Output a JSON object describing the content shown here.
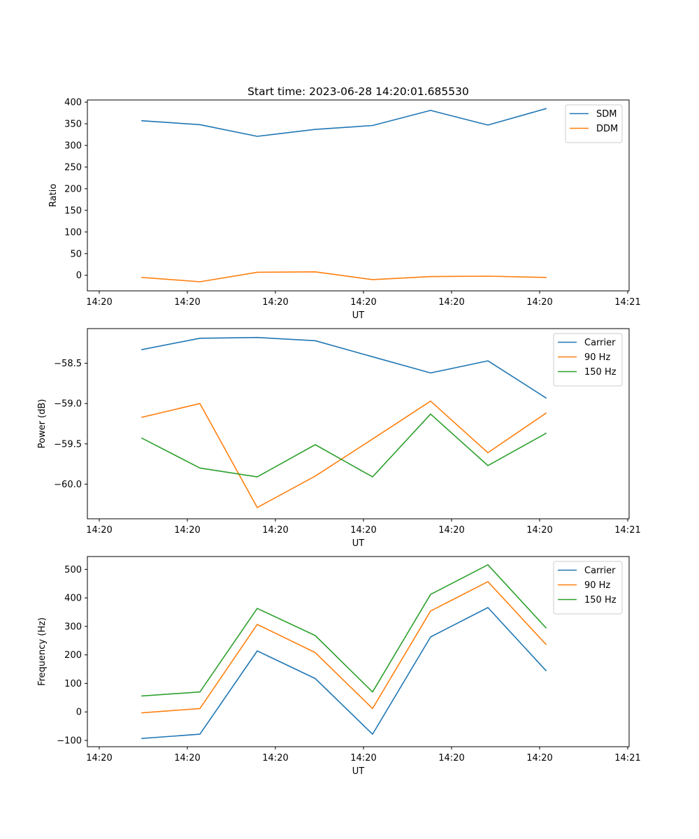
{
  "figure": {
    "title": "Start time: 2023-06-28 14:20:01.685530"
  },
  "chart_data": [
    {
      "type": "line",
      "title": "Start time: 2023-06-28 14:20:01.685530",
      "xlabel": "UT",
      "ylabel": "Ratio",
      "x_tick_labels": [
        "14:20",
        "14:20",
        "14:20",
        "14:20",
        "14:20",
        "14:20",
        "14:21"
      ],
      "y_ticks": [
        0,
        50,
        100,
        150,
        200,
        250,
        300,
        350,
        400
      ],
      "ylim": [
        -36,
        405
      ],
      "legend_position": "top-right",
      "grid": false,
      "series": [
        {
          "name": "SDM",
          "color": "#1f77b4",
          "values": [
            357,
            348,
            321,
            337,
            346,
            381,
            347,
            385
          ]
        },
        {
          "name": "DDM",
          "color": "#ff7f0e",
          "values": [
            -5,
            -15,
            7,
            8,
            -10,
            -3,
            -2,
            -5
          ]
        }
      ]
    },
    {
      "type": "line",
      "xlabel": "UT",
      "ylabel": "Power (dB)",
      "x_tick_labels": [
        "14:20",
        "14:20",
        "14:20",
        "14:20",
        "14:20",
        "14:20",
        "14:21"
      ],
      "y_ticks": [
        -60.0,
        -59.5,
        -59.0,
        -58.5
      ],
      "y_tick_labels": [
        "−60.0",
        "−59.5",
        "−59.0",
        "−58.5"
      ],
      "ylim": [
        -60.43,
        -58.07
      ],
      "legend_position": "top-right",
      "grid": false,
      "series": [
        {
          "name": "Carrier",
          "color": "#1f77b4",
          "values": [
            -58.33,
            -58.19,
            -58.18,
            -58.22,
            -58.42,
            -58.62,
            -58.47,
            -58.93
          ]
        },
        {
          "name": "90 Hz",
          "color": "#ff7f0e",
          "values": [
            -59.17,
            -59.0,
            -60.29,
            -59.9,
            -59.44,
            -58.97,
            -59.61,
            -59.12
          ]
        },
        {
          "name": "150 Hz",
          "color": "#2ca02c",
          "values": [
            -59.43,
            -59.8,
            -59.91,
            -59.51,
            -59.91,
            -59.13,
            -59.77,
            -59.37
          ]
        }
      ]
    },
    {
      "type": "line",
      "xlabel": "UT",
      "ylabel": "Frequency (Hz)",
      "x_tick_labels": [
        "14:20",
        "14:20",
        "14:20",
        "14:20",
        "14:20",
        "14:20",
        "14:21"
      ],
      "y_ticks": [
        -100,
        0,
        100,
        200,
        300,
        400,
        500
      ],
      "y_tick_labels": [
        "−100",
        "0",
        "100",
        "200",
        "300",
        "400",
        "500"
      ],
      "ylim": [
        -122,
        545
      ],
      "legend_position": "top-right",
      "grid": false,
      "series": [
        {
          "name": "Carrier",
          "color": "#1f77b4",
          "values": [
            -93,
            -78,
            214,
            117,
            -78,
            263,
            366,
            145
          ]
        },
        {
          "name": "90 Hz",
          "color": "#ff7f0e",
          "values": [
            -3,
            12,
            307,
            208,
            12,
            354,
            457,
            237
          ]
        },
        {
          "name": "150 Hz",
          "color": "#2ca02c",
          "values": [
            56,
            70,
            363,
            268,
            70,
            412,
            516,
            295
          ]
        }
      ]
    }
  ]
}
